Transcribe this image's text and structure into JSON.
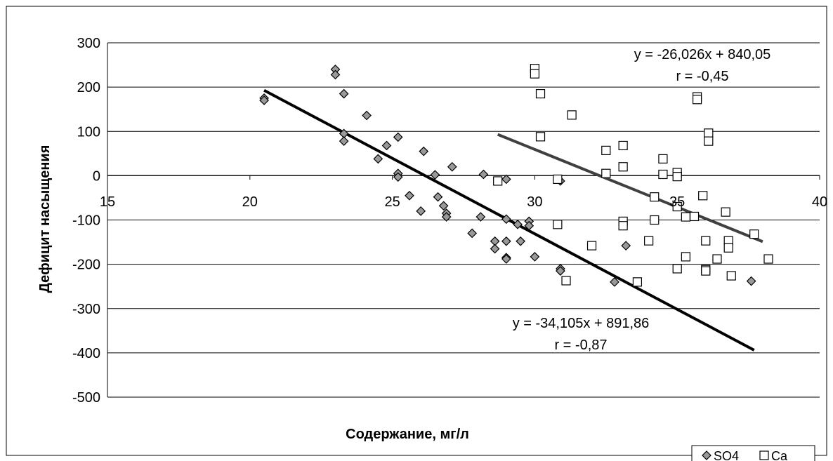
{
  "chart_data": {
    "type": "scatter",
    "xlabel": "Содержание, мг/л",
    "ylabel": "Дефицит насыщения",
    "xlim": [
      15,
      40
    ],
    "ylim": [
      -500,
      300
    ],
    "x_ticks": [
      "15",
      "20",
      "25",
      "30",
      "35",
      "40"
    ],
    "y_ticks": [
      "300",
      "200",
      "100",
      "0",
      "-100",
      "-200",
      "-300",
      "-400",
      "-500"
    ],
    "grid": "horizontal",
    "legend_position": "bottom-right",
    "series": [
      {
        "name": "SO4",
        "marker": "diamond",
        "color": "#999999",
        "points": [
          [
            20.5,
            175
          ],
          [
            20.5,
            170
          ],
          [
            23.0,
            240
          ],
          [
            23.0,
            228
          ],
          [
            23.3,
            185
          ],
          [
            23.3,
            95
          ],
          [
            23.3,
            78
          ],
          [
            24.1,
            136
          ],
          [
            24.5,
            38
          ],
          [
            24.8,
            68
          ],
          [
            25.2,
            87
          ],
          [
            25.2,
            5
          ],
          [
            25.2,
            -3
          ],
          [
            25.6,
            -45
          ],
          [
            26.0,
            -80
          ],
          [
            26.1,
            55
          ],
          [
            26.5,
            2
          ],
          [
            26.6,
            -48
          ],
          [
            26.8,
            -68
          ],
          [
            26.9,
            -85
          ],
          [
            26.9,
            -93
          ],
          [
            27.1,
            20
          ],
          [
            27.8,
            -130
          ],
          [
            28.1,
            -93
          ],
          [
            28.2,
            3
          ],
          [
            28.6,
            -148
          ],
          [
            28.6,
            -165
          ],
          [
            29.0,
            -8
          ],
          [
            29.0,
            -98
          ],
          [
            29.0,
            -148
          ],
          [
            29.0,
            -185
          ],
          [
            29.0,
            -188
          ],
          [
            29.4,
            -110
          ],
          [
            29.5,
            -148
          ],
          [
            29.8,
            -103
          ],
          [
            29.8,
            -113
          ],
          [
            30.0,
            -183
          ],
          [
            30.9,
            -210
          ],
          [
            30.9,
            -215
          ],
          [
            30.9,
            -12
          ],
          [
            32.8,
            -240
          ],
          [
            33.2,
            -158
          ],
          [
            37.6,
            -238
          ]
        ]
      },
      {
        "name": "Ca",
        "marker": "square",
        "color": "#ffffff",
        "points": [
          [
            28.7,
            -12
          ],
          [
            30.0,
            242
          ],
          [
            30.0,
            230
          ],
          [
            30.2,
            185
          ],
          [
            30.2,
            88
          ],
          [
            30.8,
            -8
          ],
          [
            30.8,
            -110
          ],
          [
            31.1,
            -237
          ],
          [
            31.3,
            137
          ],
          [
            32.0,
            -158
          ],
          [
            32.5,
            57
          ],
          [
            32.5,
            5
          ],
          [
            33.1,
            68
          ],
          [
            33.1,
            20
          ],
          [
            33.1,
            -103
          ],
          [
            33.1,
            -113
          ],
          [
            33.6,
            -240
          ],
          [
            34.0,
            -147
          ],
          [
            34.2,
            -48
          ],
          [
            34.2,
            -100
          ],
          [
            34.5,
            38
          ],
          [
            34.5,
            3
          ],
          [
            35.0,
            7
          ],
          [
            35.0,
            -2
          ],
          [
            35.0,
            -70
          ],
          [
            35.0,
            -210
          ],
          [
            35.3,
            -93
          ],
          [
            35.3,
            -183
          ],
          [
            35.6,
            -92
          ],
          [
            35.7,
            178
          ],
          [
            35.7,
            172
          ],
          [
            35.9,
            -45
          ],
          [
            36.0,
            -147
          ],
          [
            36.0,
            -212
          ],
          [
            36.0,
            -215
          ],
          [
            36.1,
            96
          ],
          [
            36.1,
            78
          ],
          [
            36.4,
            -188
          ],
          [
            36.7,
            -82
          ],
          [
            36.8,
            -147
          ],
          [
            36.8,
            -163
          ],
          [
            36.9,
            -226
          ],
          [
            37.7,
            -132
          ],
          [
            38.2,
            -188
          ]
        ]
      }
    ],
    "trendlines": [
      {
        "series": "SO4",
        "color": "#000000",
        "x_range": [
          20.5,
          37.7
        ],
        "slope": -34.105,
        "intercept": 891.86,
        "equation_label": "y = -34,105x + 891,86",
        "r_label": "r = -0,87"
      },
      {
        "series": "Ca",
        "color": "#404040",
        "x_range": [
          28.7,
          38.0
        ],
        "slope": -26.026,
        "intercept": 840.05,
        "equation_label": "y = -26,026x + 840,05",
        "r_label": "r = -0,45"
      }
    ]
  }
}
